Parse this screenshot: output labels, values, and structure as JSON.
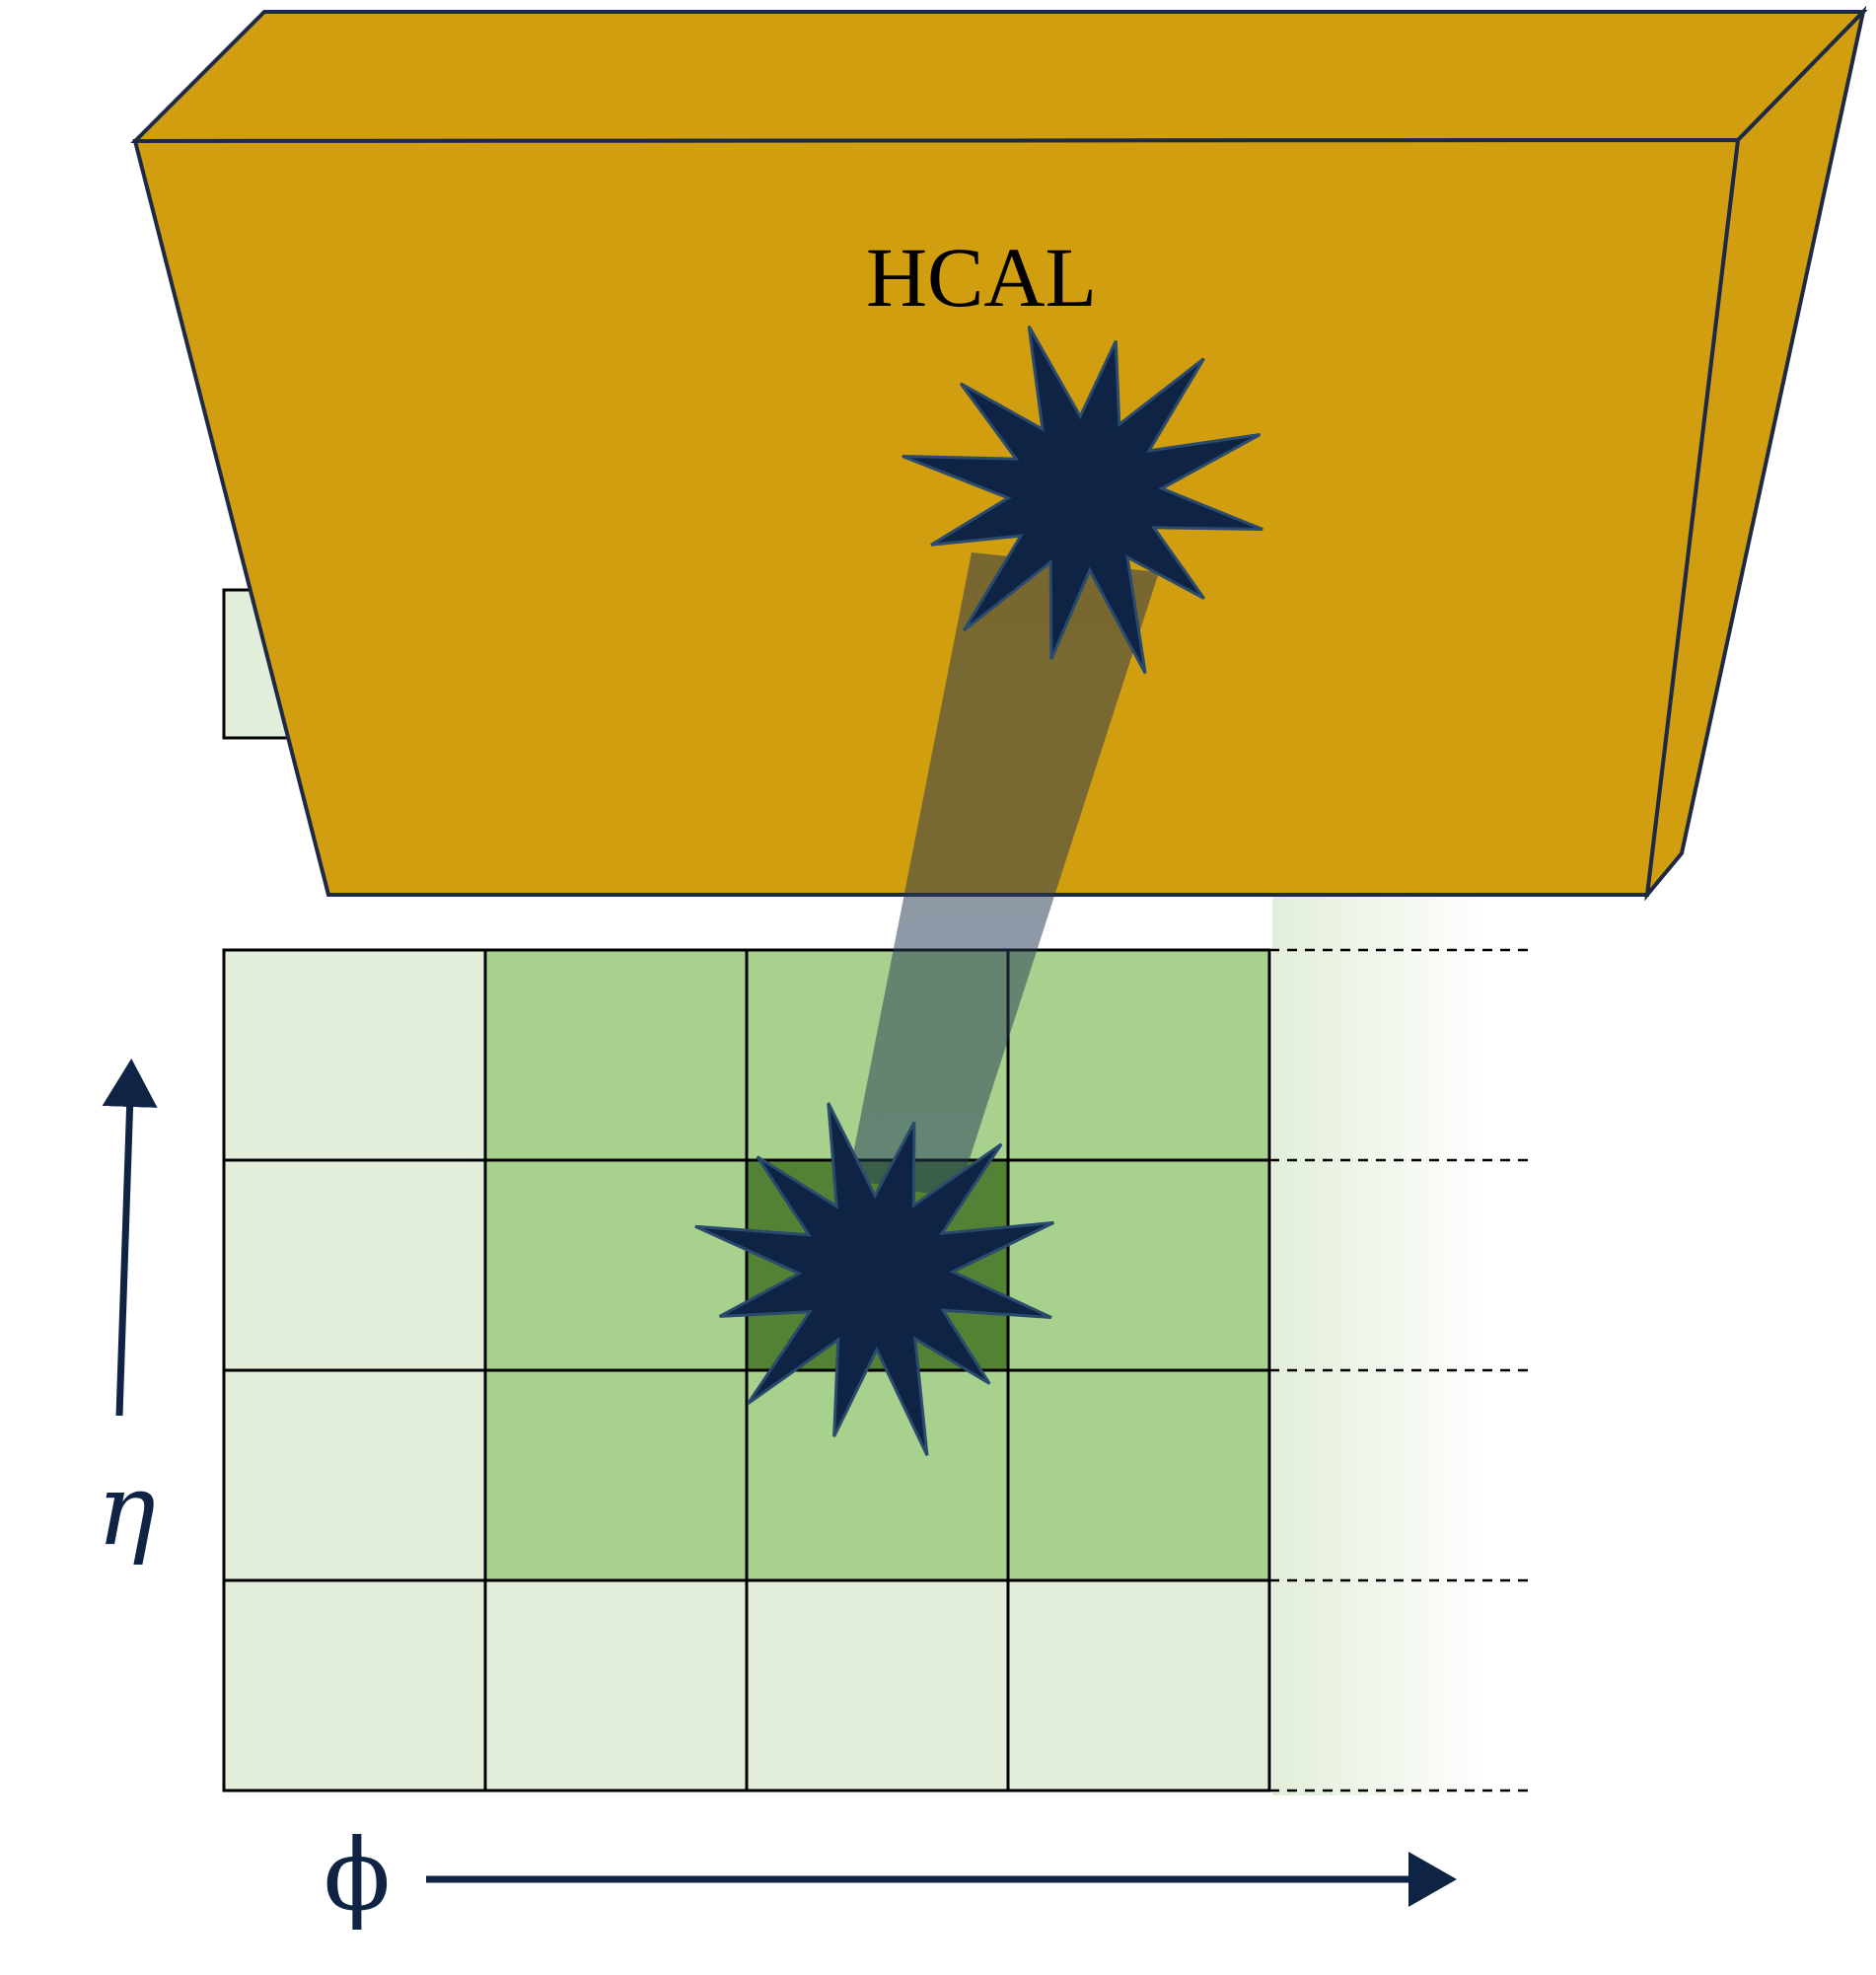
{
  "detector": {
    "hcal_label": "HCAL"
  },
  "axes": {
    "eta_symbol": "η",
    "phi_symbol": "ϕ"
  },
  "grid": {
    "rows": 5,
    "cols": 4,
    "row_header_partial": true,
    "cell_states": [
      [
        "outer",
        "outer",
        "outer",
        "outer"
      ],
      [
        "outer",
        "neighbor",
        "neighbor",
        "neighbor"
      ],
      [
        "outer",
        "neighbor",
        "seed",
        "neighbor"
      ],
      [
        "outer",
        "neighbor",
        "neighbor",
        "neighbor"
      ],
      [
        "outer",
        "outer",
        "outer",
        "outer"
      ]
    ]
  },
  "colors": {
    "hcal_front": "#d19e10",
    "hcal_edge": "#1e2a44",
    "cell_outer": "#e2eed9",
    "cell_neighbor": "#a9d18e",
    "cell_seed": "#548235",
    "grid_line": "#000000",
    "burst": "#0f2344",
    "axis": "#0f2344",
    "beam": "#3b3b3b"
  }
}
